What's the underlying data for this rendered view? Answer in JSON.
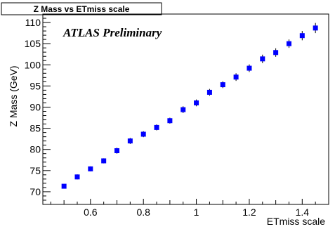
{
  "chart_data": {
    "type": "scatter",
    "title": "Z Mass vs ETmiss scale",
    "annotation": "ATLAS Preliminary",
    "xlabel": "ETmiss scale",
    "ylabel": "Z Mass (GeV)",
    "xlim": [
      0.42,
      1.5
    ],
    "ylim": [
      67,
      112
    ],
    "x_ticks": [
      0.6,
      0.8,
      1.0,
      1.2,
      1.4
    ],
    "x_tick_labels": [
      "0.6",
      "0.8",
      "1",
      "1.2",
      "1.4"
    ],
    "y_ticks": [
      70,
      75,
      80,
      85,
      90,
      95,
      100,
      105,
      110
    ],
    "y_tick_labels": [
      "70",
      "75",
      "80",
      "85",
      "90",
      "95",
      "100",
      "105",
      "110"
    ],
    "grid": false,
    "marker_color": "#0000ff",
    "series": [
      {
        "x": [
          0.5,
          0.55,
          0.6,
          0.65,
          0.7,
          0.75,
          0.8,
          0.85,
          0.9,
          0.95,
          1.0,
          1.05,
          1.1,
          1.15,
          1.2,
          1.25,
          1.3,
          1.35,
          1.4,
          1.45
        ],
        "y": [
          71.3,
          73.5,
          75.4,
          77.3,
          79.7,
          82.0,
          83.6,
          85.2,
          86.8,
          89.4,
          91.0,
          93.5,
          95.3,
          97.1,
          99.2,
          101.4,
          102.9,
          105.0,
          106.9,
          108.7
        ],
        "err": [
          0.5,
          0.6,
          0.6,
          0.6,
          0.7,
          0.7,
          0.7,
          0.7,
          0.7,
          0.8,
          0.8,
          0.8,
          0.8,
          0.9,
          0.9,
          1.0,
          1.0,
          1.0,
          1.1,
          1.2
        ]
      }
    ]
  }
}
